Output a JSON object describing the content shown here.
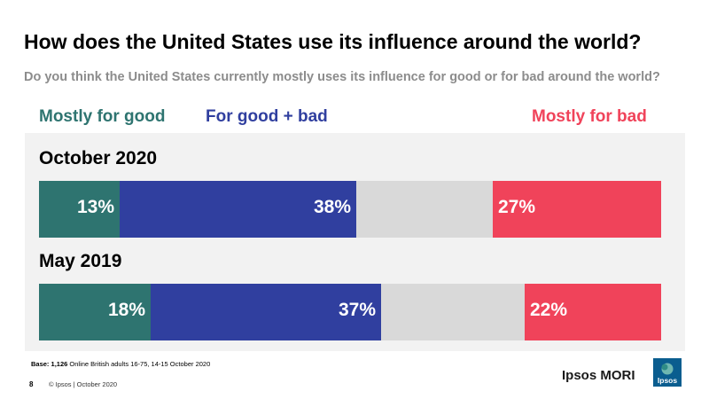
{
  "header": {
    "title": "How does the United States use its influence around the world?",
    "subtitle": "Do you think the United States currently mostly uses its influence for good or for bad around the world?"
  },
  "legend": [
    {
      "label": "Mostly for good",
      "color": "#2e7470"
    },
    {
      "label": "For good + bad",
      "color": "#303f9f"
    },
    {
      "label": "Mostly for bad",
      "color": "#f0435a"
    }
  ],
  "chart_data": {
    "type": "bar",
    "orientation": "horizontal",
    "stacked": true,
    "categories": [
      "October 2020",
      "May 2019"
    ],
    "xlim": [
      0,
      100
    ],
    "series": [
      {
        "name": "Mostly for good",
        "values": [
          13,
          18
        ],
        "labels": [
          "13%",
          "18%"
        ],
        "color": "#2e7470"
      },
      {
        "name": "For good + bad",
        "values": [
          38,
          37
        ],
        "labels": [
          "38%",
          "37%"
        ],
        "color": "#303f9f"
      },
      {
        "name": "",
        "values": [
          22,
          23
        ],
        "labels": [
          "",
          ""
        ],
        "color": "#d9d9d9"
      },
      {
        "name": "Mostly for bad",
        "values": [
          27,
          22
        ],
        "labels": [
          "27%",
          "22%"
        ],
        "color": "#f0435a"
      }
    ]
  },
  "footer": {
    "base_label": "Base:",
    "base_count": "1,126",
    "base_text": "Online British adults 16-75, 14-15 October 2020",
    "page_number": "8",
    "copyright": "© Ipsos | October 2020",
    "brand": "Ipsos MORI",
    "logo_text": "Ipsos",
    "logo_color": "#0a5d8f"
  }
}
